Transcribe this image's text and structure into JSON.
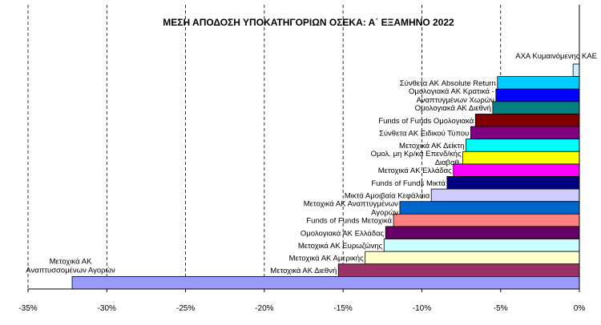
{
  "chart_data": {
    "type": "bar",
    "orientation": "horizontal",
    "title": "ΜΕΣΗ ΑΠΟΔΟΣΗ ΥΠΟΚΑΤΗΓΟΡΙΩΝ  ΟΣΕΚΑ: Α΄ ΕΞΑΜΗΝΟ 2022",
    "xlabel": "",
    "ylabel": "",
    "xlim": [
      -35,
      0
    ],
    "grid": "vertical-dashed",
    "legend": "none",
    "x_ticks": [
      -35,
      -30,
      -25,
      -20,
      -15,
      -10,
      -5,
      0
    ],
    "x_tick_labels": [
      "-35%",
      "-30%",
      "-25%",
      "-20%",
      "-15%",
      "-10%",
      "-5%",
      "0%"
    ],
    "bars": [
      {
        "label": [
          "AXA Κυμαινόμενης ΚΑΕ"
        ],
        "value": -0.4,
        "color": "#ccecff"
      },
      {
        "label": [
          "Σύνθετα ΑΚ Absolute Return"
        ],
        "value": -5.2,
        "color": "#00ccff"
      },
      {
        "label": [
          "Ομολογιακά ΑΚ Κρατικά -",
          "Αναπτυγμένων Χωρών"
        ],
        "value": -5.3,
        "color": "#0000ff"
      },
      {
        "label": [
          "Ομολογιακά ΑΚ Διεθνή"
        ],
        "value": -5.5,
        "color": "#008080"
      },
      {
        "label": [
          "Funds of Funds Ομολογιακά"
        ],
        "value": -6.6,
        "color": "#800000"
      },
      {
        "label": [
          "Σύνθετα ΑΚ Ειδικού Τύπου"
        ],
        "value": -6.9,
        "color": "#800080"
      },
      {
        "label": [
          "Μετοχικά ΑΚ Δείκτη"
        ],
        "value": -7.2,
        "color": "#00ffff"
      },
      {
        "label": [
          "Ομολ. μη Κρ/κά Επενδ/κής",
          "Διαβαθ."
        ],
        "value": -7.4,
        "color": "#ffff00"
      },
      {
        "label": [
          "Μετοχικά ΑΚ Ελλάδας"
        ],
        "value": -8.0,
        "color": "#ff00ff"
      },
      {
        "label": [
          "Funds of Funds Μικτά"
        ],
        "value": -8.4,
        "color": "#000080"
      },
      {
        "label": [
          "Μικτά Αμοιβαία Κεφάλαια"
        ],
        "value": -9.4,
        "color": "#ccccff"
      },
      {
        "label": [
          "Μετοχικά ΑΚ Αναπτυγμένων",
          "Αγορών"
        ],
        "value": -11.4,
        "color": "#0066cc"
      },
      {
        "label": [
          "Funds of Funds Μετοχικά"
        ],
        "value": -11.8,
        "color": "#ff8080"
      },
      {
        "label": [
          "Ομολογιακά ΑΚ Ελλάδας"
        ],
        "value": -12.3,
        "color": "#660066"
      },
      {
        "label": [
          "Μετοχικά ΑΚ Ευρωζώνης"
        ],
        "value": -12.4,
        "color": "#ccffff"
      },
      {
        "label": [
          "Μετοχικά ΑΚ Αμερικής"
        ],
        "value": -13.6,
        "color": "#ffffcc"
      },
      {
        "label": [
          "Μετοχικά ΑΚ Διεθνή"
        ],
        "value": -15.3,
        "color": "#993366"
      },
      {
        "label": [
          "Μετοχικά ΑΚ",
          "Αναπτυσσομένων Αγορών"
        ],
        "value": -32.2,
        "color": "#9999ff"
      }
    ]
  }
}
